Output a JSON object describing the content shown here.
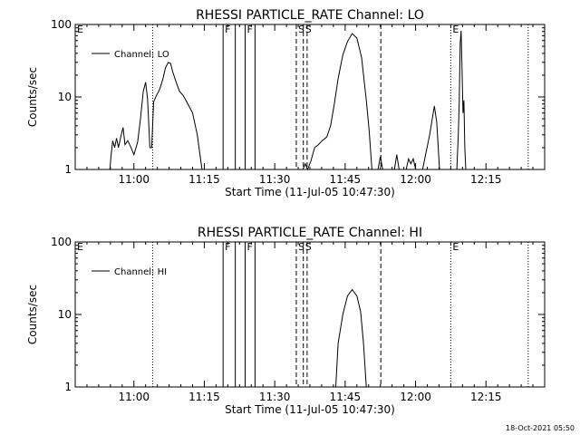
{
  "chart_data": [
    {
      "type": "line",
      "title": "RHESSI PARTICLE_RATE Channel: LO",
      "xlabel": "Start Time (11-Jul-05 10:47:30)",
      "ylabel": "Counts/sec",
      "yscale": "log",
      "ylim": [
        1,
        100
      ],
      "xlim_minutes": [
        0,
        100
      ],
      "x_ticks": [
        "11:00",
        "11:15",
        "11:30",
        "11:45",
        "12:00",
        "12:15"
      ],
      "y_ticks": [
        "1",
        "10",
        "100"
      ],
      "legend": {
        "label": "Channel: LO",
        "position": "top-left"
      },
      "markers": [
        {
          "label": "E",
          "x_minutes": 0,
          "style": "dotted"
        },
        {
          "label": "",
          "x_minutes": 16.5,
          "style": "dotted"
        },
        {
          "label": "F",
          "x_minutes": 31.5,
          "style": "solid"
        },
        {
          "label": "",
          "x_minutes": 34.1,
          "style": "solid"
        },
        {
          "label": "F",
          "x_minutes": 36.2,
          "style": "solid"
        },
        {
          "label": "",
          "x_minutes": 38.3,
          "style": "solid"
        },
        {
          "label": "S",
          "x_minutes": 47.1,
          "style": "dashed"
        },
        {
          "label": "S",
          "x_minutes": 48.6,
          "style": "dashed"
        },
        {
          "label": "",
          "x_minutes": 49.4,
          "style": "dashed"
        },
        {
          "label": "",
          "x_minutes": 65.1,
          "style": "dashed"
        },
        {
          "label": "E",
          "x_minutes": 80.0,
          "style": "dotted"
        },
        {
          "label": "",
          "x_minutes": 96.5,
          "style": "dotted"
        }
      ],
      "segments": [
        [
          [
            7.4,
            1
          ],
          [
            7.6,
            1.5
          ],
          [
            8.0,
            2.5
          ],
          [
            8.4,
            2.0
          ],
          [
            8.8,
            2.7
          ],
          [
            9.2,
            2.0
          ],
          [
            9.7,
            2.8
          ],
          [
            10.2,
            3.8
          ],
          [
            10.6,
            2.2
          ],
          [
            11.2,
            2.5
          ],
          [
            11.9,
            2.0
          ],
          [
            12.5,
            1.6
          ],
          [
            13.3,
            2.4
          ],
          [
            13.9,
            5.0
          ],
          [
            14.5,
            12.0
          ],
          [
            15.0,
            16.0
          ],
          [
            15.4,
            9.5
          ],
          [
            15.9,
            2.0
          ],
          [
            16.3,
            2.0
          ],
          [
            16.7,
            8.5
          ],
          [
            17.3,
            10.5
          ],
          [
            17.8,
            12.0
          ],
          [
            18.2,
            14.0
          ],
          [
            18.7,
            18.0
          ],
          [
            19.2,
            25.0
          ],
          [
            19.8,
            30.0
          ],
          [
            20.3,
            29.0
          ],
          [
            20.8,
            22.0
          ],
          [
            21.5,
            16.0
          ],
          [
            22.2,
            12.0
          ],
          [
            23.0,
            10.5
          ],
          [
            24.0,
            8.0
          ],
          [
            25.0,
            6.0
          ],
          [
            26.0,
            3.0
          ],
          [
            27.0,
            1.0
          ]
        ],
        [
          [
            48.5,
            1.0
          ],
          [
            49.0,
            1.2
          ],
          [
            49.5,
            1.0
          ],
          [
            50.2,
            1.3
          ],
          [
            51.0,
            2.0
          ],
          [
            51.8,
            2.2
          ],
          [
            52.6,
            2.5
          ],
          [
            53.6,
            2.8
          ],
          [
            54.4,
            4.0
          ],
          [
            55.2,
            8.0
          ],
          [
            56.0,
            18.0
          ],
          [
            57.0,
            38.0
          ],
          [
            58.0,
            58.0
          ],
          [
            59.0,
            75.0
          ],
          [
            60.0,
            65.0
          ],
          [
            61.0,
            35.0
          ],
          [
            62.0,
            9.0
          ],
          [
            62.6,
            3.5
          ],
          [
            63.2,
            1.0
          ]
        ],
        [
          [
            64.5,
            1.0
          ],
          [
            65.0,
            1.5
          ],
          [
            65.5,
            1.0
          ]
        ],
        [
          [
            68.0,
            1.0
          ],
          [
            68.5,
            1.6
          ],
          [
            69.0,
            1.0
          ]
        ],
        [
          [
            70.5,
            1.0
          ],
          [
            71.0,
            1.4
          ],
          [
            71.5,
            1.2
          ],
          [
            72.0,
            1.4
          ],
          [
            72.5,
            1.0
          ]
        ],
        [
          [
            74.0,
            1.0
          ],
          [
            75.5,
            3.0
          ],
          [
            76.5,
            7.5
          ],
          [
            77.0,
            4.5
          ],
          [
            77.6,
            1.0
          ]
        ],
        [
          [
            81.3,
            1.0
          ],
          [
            81.6,
            3.0
          ],
          [
            81.8,
            8.0
          ],
          [
            82.0,
            55.0
          ],
          [
            82.2,
            82.0
          ],
          [
            82.4,
            25.0
          ],
          [
            82.6,
            6.0
          ],
          [
            82.8,
            9.0
          ],
          [
            83.0,
            2.0
          ],
          [
            83.2,
            1.0
          ]
        ]
      ]
    },
    {
      "type": "line",
      "title": "RHESSI PARTICLE_RATE Channel: HI",
      "xlabel": "Start Time (11-Jul-05 10:47:30)",
      "ylabel": "Counts/sec",
      "yscale": "log",
      "ylim": [
        1,
        100
      ],
      "xlim_minutes": [
        0,
        100
      ],
      "x_ticks": [
        "11:00",
        "11:15",
        "11:30",
        "11:45",
        "12:00",
        "12:15"
      ],
      "y_ticks": [
        "1",
        "10",
        "100"
      ],
      "legend": {
        "label": "Channel: HI",
        "position": "top-left"
      },
      "markers": [
        {
          "label": "E",
          "x_minutes": 0,
          "style": "dotted"
        },
        {
          "label": "",
          "x_minutes": 16.5,
          "style": "dotted"
        },
        {
          "label": "F",
          "x_minutes": 31.5,
          "style": "solid"
        },
        {
          "label": "",
          "x_minutes": 34.1,
          "style": "solid"
        },
        {
          "label": "F",
          "x_minutes": 36.2,
          "style": "solid"
        },
        {
          "label": "",
          "x_minutes": 38.3,
          "style": "solid"
        },
        {
          "label": "S",
          "x_minutes": 47.1,
          "style": "dashed"
        },
        {
          "label": "S",
          "x_minutes": 48.6,
          "style": "dashed"
        },
        {
          "label": "",
          "x_minutes": 49.4,
          "style": "dashed"
        },
        {
          "label": "",
          "x_minutes": 65.1,
          "style": "dashed"
        },
        {
          "label": "E",
          "x_minutes": 80.0,
          "style": "dotted"
        },
        {
          "label": "",
          "x_minutes": 96.5,
          "style": "dotted"
        }
      ],
      "segments": [
        [
          [
            55.5,
            1.0
          ],
          [
            56.0,
            4.0
          ],
          [
            57.0,
            10.0
          ],
          [
            58.0,
            18.0
          ],
          [
            59.0,
            22.0
          ],
          [
            60.0,
            18.0
          ],
          [
            60.8,
            11.0
          ],
          [
            61.4,
            4.0
          ],
          [
            62.0,
            1.0
          ]
        ]
      ]
    }
  ],
  "footer": {
    "timestamp": "18-Oct-2021 05:50"
  }
}
